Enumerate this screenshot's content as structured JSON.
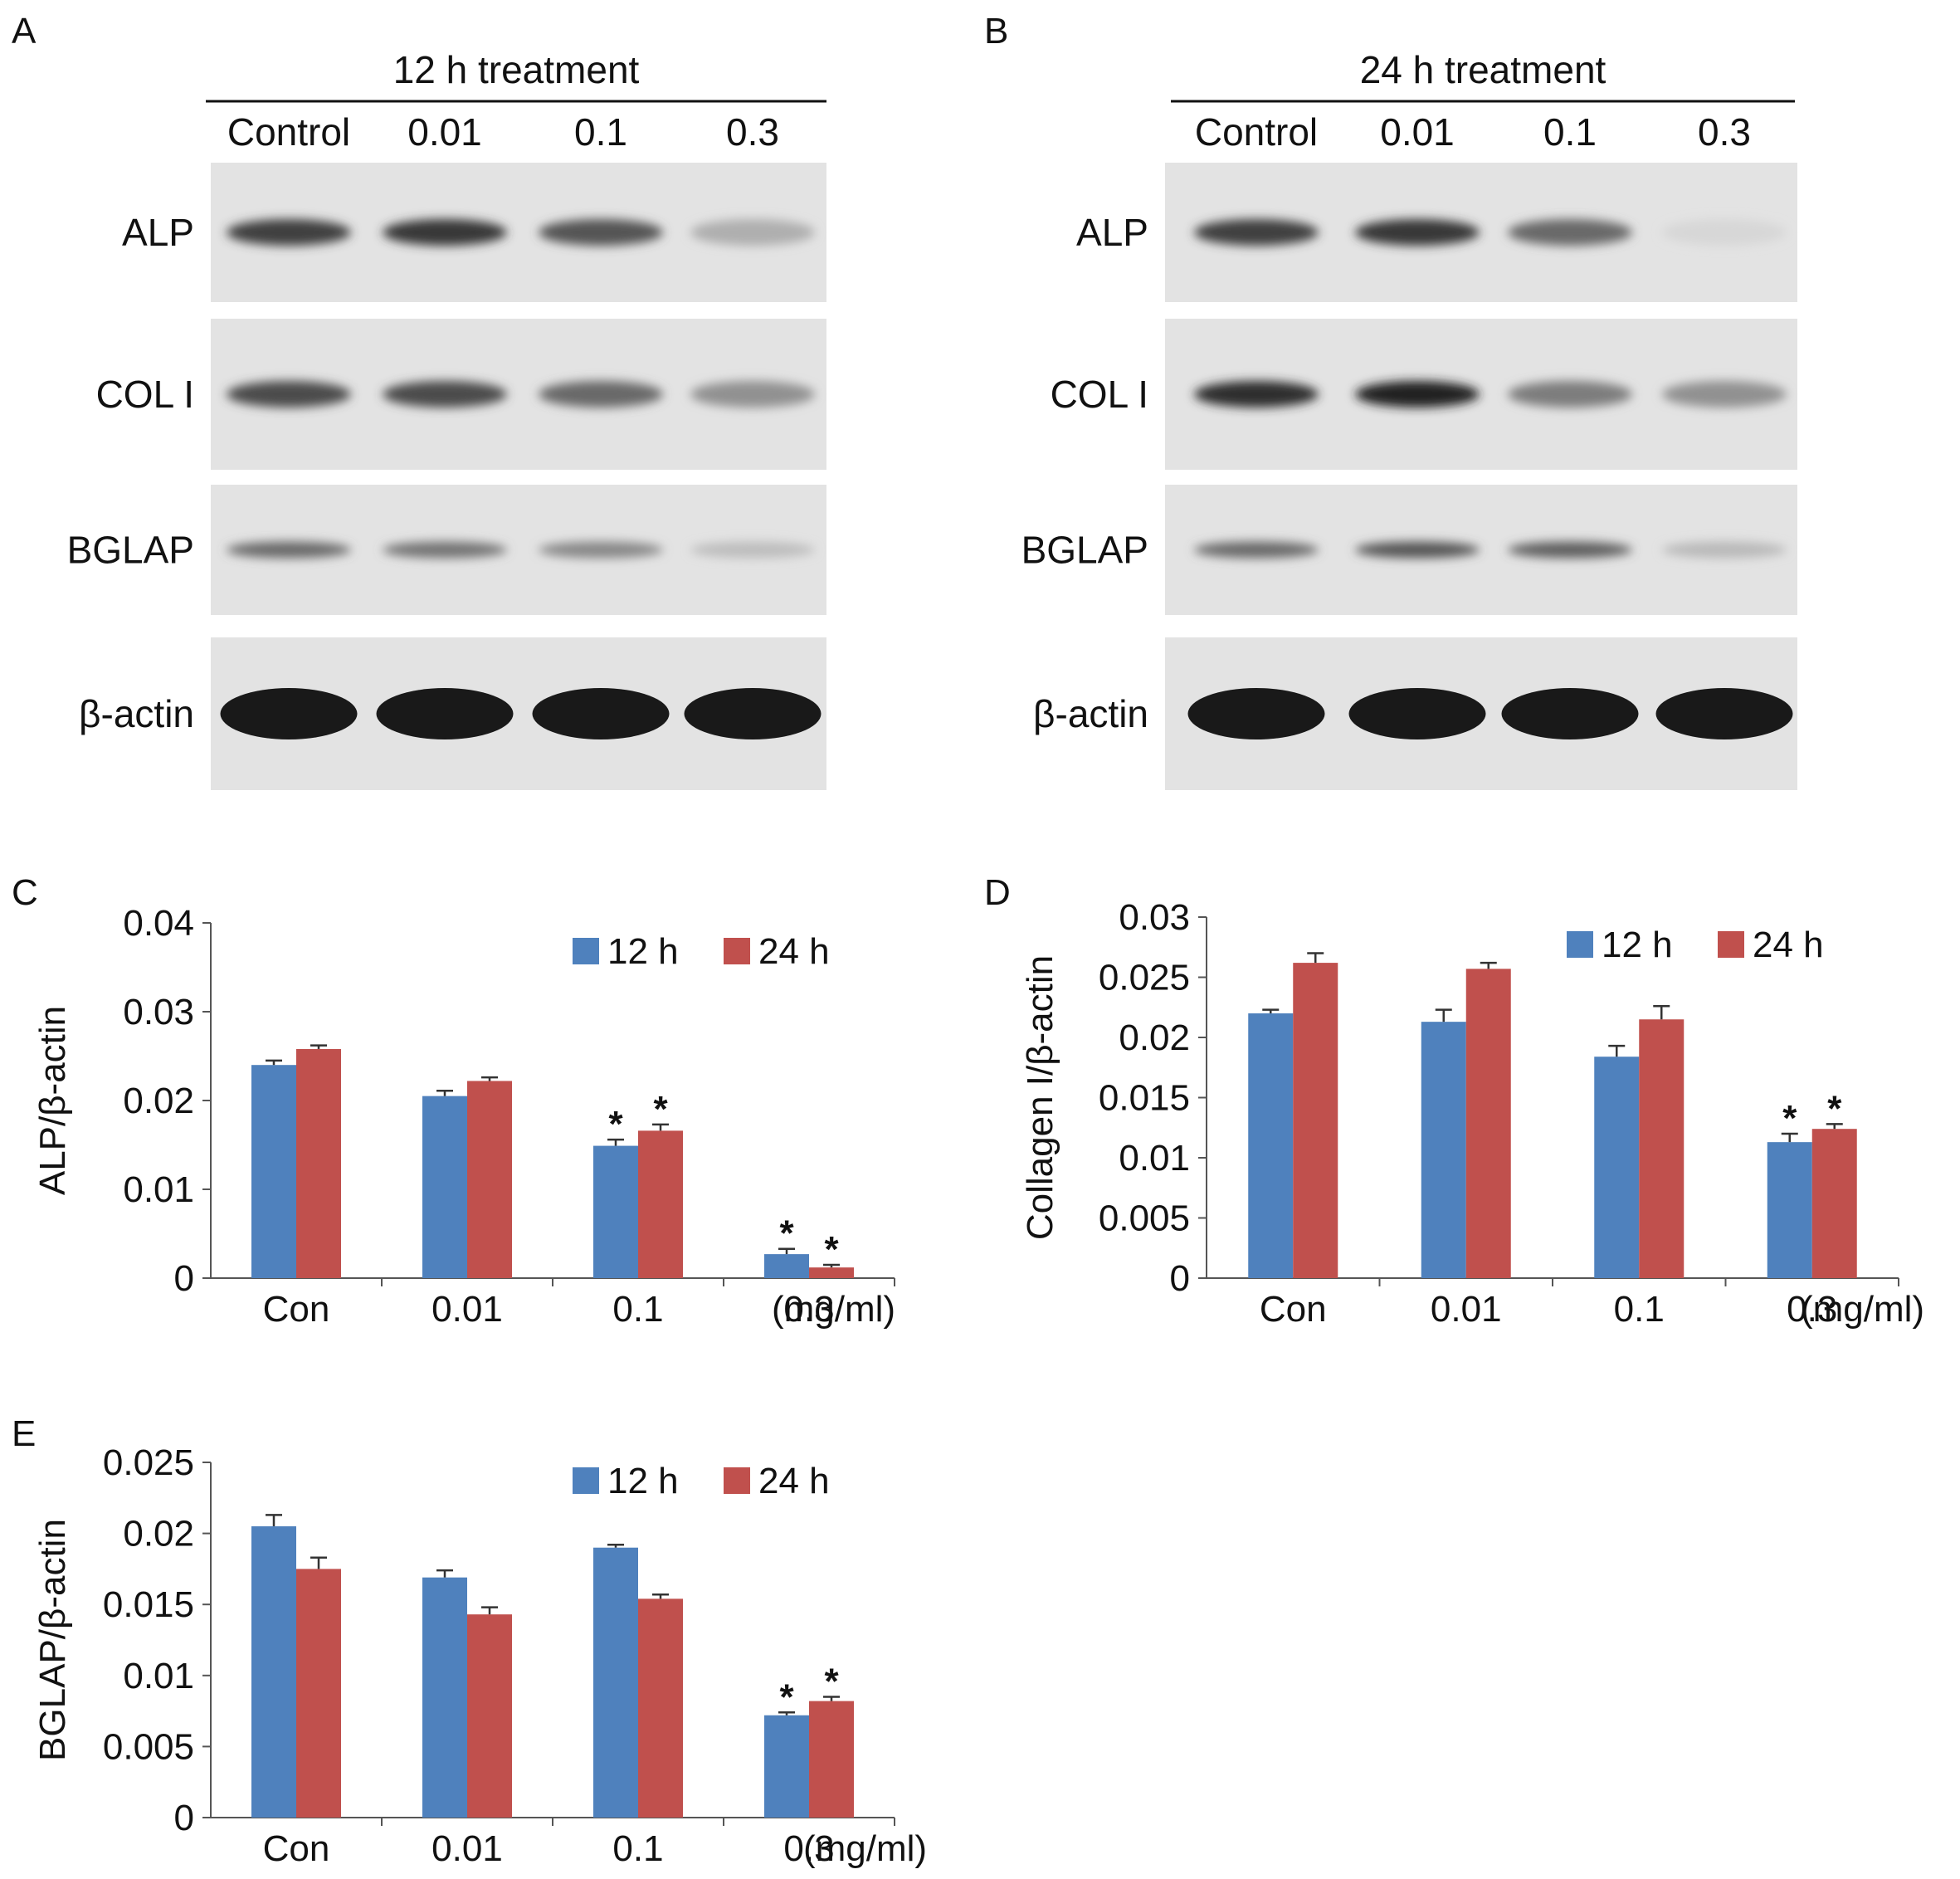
{
  "figure": {
    "panels": [
      "A",
      "B",
      "C",
      "D",
      "E"
    ]
  },
  "blots": [
    {
      "panel": "A",
      "header": "12 h treatment",
      "lanes": [
        "Control",
        "0.01",
        "0.1",
        "0.3"
      ],
      "rows": [
        {
          "label": "ALP",
          "intensity": [
            0.8,
            0.85,
            0.7,
            0.25
          ]
        },
        {
          "label": "COL I",
          "intensity": [
            0.75,
            0.75,
            0.6,
            0.4
          ]
        },
        {
          "label": "BGLAP",
          "intensity": [
            0.6,
            0.55,
            0.45,
            0.18
          ]
        },
        {
          "label": "β-actin",
          "intensity": [
            1.0,
            1.0,
            1.0,
            1.0
          ]
        }
      ]
    },
    {
      "panel": "B",
      "header": "24 h treatment",
      "lanes": [
        "Control",
        "0.01",
        "0.1",
        "0.3"
      ],
      "rows": [
        {
          "label": "ALP",
          "intensity": [
            0.8,
            0.85,
            0.6,
            0.05
          ]
        },
        {
          "label": "COL I",
          "intensity": [
            0.9,
            0.95,
            0.5,
            0.4
          ]
        },
        {
          "label": "BGLAP",
          "intensity": [
            0.6,
            0.7,
            0.65,
            0.2
          ]
        },
        {
          "label": "β-actin",
          "intensity": [
            1.0,
            1.0,
            1.0,
            1.0
          ]
        }
      ]
    }
  ],
  "chart_data": [
    {
      "panel": "C",
      "type": "bar",
      "categories": [
        "Con",
        "0.01",
        "0.1",
        "0.3"
      ],
      "xunit": "(mg/ml)",
      "ylabel": "ALP/β-actin",
      "ylim": [
        0,
        0.04
      ],
      "yticks": [
        "0",
        "0.01",
        "0.02",
        "0.03",
        "0.04"
      ],
      "series": [
        {
          "name": "12 h",
          "color": "#4F81BD",
          "values": [
            0.024,
            0.0205,
            0.0149,
            0.0027
          ],
          "errors": [
            0.0005,
            0.0006,
            0.0007,
            0.0006
          ]
        },
        {
          "name": "24 h",
          "color": "#C0504D",
          "values": [
            0.0258,
            0.0222,
            0.0166,
            0.0012
          ],
          "errors": [
            0.0004,
            0.0004,
            0.0007,
            0.0003
          ]
        }
      ],
      "significance": [
        [
          false,
          false,
          true,
          true
        ],
        [
          false,
          false,
          true,
          true
        ]
      ],
      "marker": "*"
    },
    {
      "panel": "D",
      "type": "bar",
      "categories": [
        "Con",
        "0.01",
        "0.1",
        "0.3"
      ],
      "xunit": "(mg/ml)",
      "ylabel": "Collagen I/β-actin",
      "ylim": [
        0,
        0.03
      ],
      "yticks": [
        "0",
        "0.005",
        "0.01",
        "0.015",
        "0.02",
        "0.025",
        "0.03"
      ],
      "series": [
        {
          "name": "12 h",
          "color": "#4F81BD",
          "values": [
            0.022,
            0.0213,
            0.0184,
            0.0113
          ],
          "errors": [
            0.0003,
            0.001,
            0.0009,
            0.0007
          ]
        },
        {
          "name": "24 h",
          "color": "#C0504D",
          "values": [
            0.0262,
            0.0257,
            0.0215,
            0.0124
          ],
          "errors": [
            0.0008,
            0.0005,
            0.0011,
            0.0004
          ]
        }
      ],
      "significance": [
        [
          false,
          false,
          false,
          true
        ],
        [
          false,
          false,
          false,
          true
        ]
      ],
      "marker": "*"
    },
    {
      "panel": "E",
      "type": "bar",
      "categories": [
        "Con",
        "0.01",
        "0.1",
        "0.3"
      ],
      "xunit": "(mg/ml)",
      "ylabel": "BGLAP/β-actin",
      "ylim": [
        0,
        0.025
      ],
      "yticks": [
        "0",
        "0.005",
        "0.01",
        "0.015",
        "0.02",
        "0.025"
      ],
      "series": [
        {
          "name": "12 h",
          "color": "#4F81BD",
          "values": [
            0.0205,
            0.0169,
            0.019,
            0.0072
          ],
          "errors": [
            0.0008,
            0.0005,
            0.0002,
            0.0002
          ]
        },
        {
          "name": "24 h",
          "color": "#C0504D",
          "values": [
            0.0175,
            0.0143,
            0.0154,
            0.0082
          ],
          "errors": [
            0.0008,
            0.0005,
            0.0003,
            0.0003
          ]
        }
      ],
      "significance": [
        [
          false,
          false,
          false,
          true
        ],
        [
          false,
          false,
          false,
          true
        ]
      ],
      "marker": "*"
    }
  ]
}
